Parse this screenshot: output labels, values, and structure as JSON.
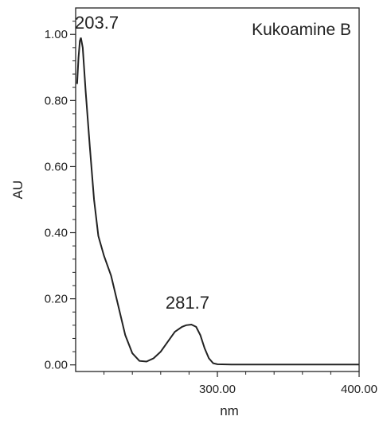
{
  "chart_data": {
    "type": "line",
    "title": "Kukoamine B",
    "xlabel": "nm",
    "ylabel": "AU",
    "xlim": [
      200,
      400
    ],
    "ylim": [
      -0.02,
      1.08
    ],
    "x_ticks": [
      300,
      400
    ],
    "x_tick_labels": [
      "300.00",
      "400.00"
    ],
    "y_ticks": [
      0,
      0.2,
      0.4,
      0.6,
      0.8,
      1.0
    ],
    "y_tick_labels": [
      "0.00",
      "0.20",
      "0.40",
      "0.60",
      "0.80",
      "1.00"
    ],
    "grid": false,
    "line_color": "#222222",
    "series": [
      {
        "x": [
          201,
          202,
          203,
          203.7,
          205,
          207,
          210,
          213,
          216,
          220,
          225,
          230,
          235,
          240,
          245,
          250,
          255,
          260,
          265,
          270,
          275,
          278,
          281.7,
          285,
          288,
          291,
          294,
          297,
          300,
          310,
          330,
          350,
          370,
          400
        ],
        "y": [
          0.85,
          0.93,
          0.98,
          0.99,
          0.96,
          0.83,
          0.66,
          0.5,
          0.39,
          0.33,
          0.27,
          0.18,
          0.09,
          0.035,
          0.012,
          0.01,
          0.02,
          0.04,
          0.07,
          0.1,
          0.115,
          0.12,
          0.122,
          0.115,
          0.09,
          0.05,
          0.02,
          0.005,
          0.002,
          0.001,
          0.001,
          0.001,
          0.001,
          0.001
        ]
      }
    ],
    "annotations": [
      {
        "text": "203.7",
        "x": 203.7,
        "y": 0.99
      },
      {
        "text": "281.7",
        "x": 281.7,
        "y": 0.122
      }
    ]
  }
}
